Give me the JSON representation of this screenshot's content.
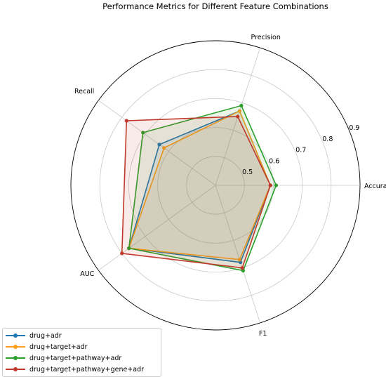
{
  "chart_data": {
    "type": "radar",
    "title": "Performance Metrics for Different Feature Combinations",
    "axes": [
      "Accuracy",
      "Precision",
      "Recall",
      "AUC",
      "F1"
    ],
    "rlim": [
      0.4,
      0.9
    ],
    "rticks": [
      0.5,
      0.6,
      0.7,
      0.8,
      0.9
    ],
    "rtick_labels": [
      "0.5",
      "0.6",
      "0.7",
      "0.8",
      "0.9"
    ],
    "grid": true,
    "legend_position": "bottom-left",
    "series": [
      {
        "name": "drug+adr",
        "color": "#1f77b4",
        "values": [
          0.59,
          0.67,
          0.64,
          0.77,
          0.68
        ]
      },
      {
        "name": "drug+target+adr",
        "color": "#ff9f1c",
        "values": [
          0.59,
          0.67,
          0.62,
          0.77,
          0.67
        ]
      },
      {
        "name": "drug+target+pathway+adr",
        "color": "#2ca02c",
        "values": [
          0.61,
          0.69,
          0.71,
          0.77,
          0.71
        ]
      },
      {
        "name": "drug+target+pathway+gene+adr",
        "color": "#c0392b",
        "values": [
          0.59,
          0.65,
          0.78,
          0.8,
          0.7
        ]
      }
    ]
  }
}
